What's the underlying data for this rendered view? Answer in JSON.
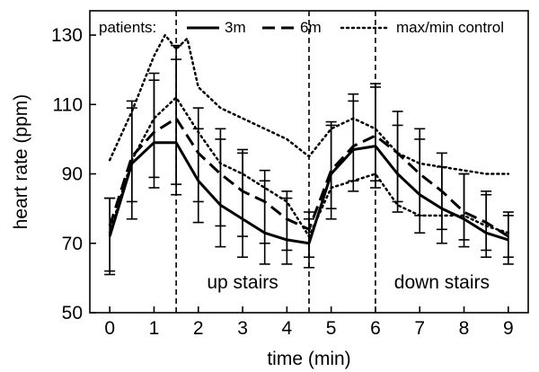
{
  "chart_data": {
    "type": "line",
    "xlabel": "time (min)",
    "ylabel": "heart rate (ppm)",
    "xlim": [
      -0.45,
      9.45
    ],
    "ylim": [
      50,
      137
    ],
    "x_ticks": [
      0,
      1,
      2,
      3,
      4,
      5,
      6,
      7,
      8,
      9
    ],
    "y_ticks": [
      50,
      70,
      90,
      110,
      130
    ],
    "grid": false,
    "legend": {
      "position": "top",
      "prefix": "patients:",
      "entries": [
        {
          "label": "3m",
          "style": "solid"
        },
        {
          "label": "6m",
          "style": "dashed"
        },
        {
          "label": "max/min control",
          "style": "dotted"
        }
      ]
    },
    "phase_markers": [
      1.5,
      4.5,
      6.0
    ],
    "annotations": [
      {
        "text": "up stairs",
        "x": 3.0,
        "y": 57
      },
      {
        "text": "down stairs",
        "x": 7.5,
        "y": 57
      }
    ],
    "series": [
      {
        "name": "3m",
        "style": "solid",
        "x": [
          0,
          0.5,
          1,
          1.5,
          2,
          2.5,
          3,
          3.5,
          4,
          4.5,
          5,
          5.5,
          6,
          6.5,
          7,
          7.5,
          8,
          8.5,
          9
        ],
        "y": [
          72,
          93,
          99,
          99,
          88,
          81,
          77,
          73,
          71,
          70,
          90,
          97,
          98,
          90,
          84,
          80,
          77,
          73,
          71
        ],
        "err_low": [
          61,
          77,
          86,
          84,
          76,
          69,
          66,
          64,
          64,
          63,
          77,
          85,
          86,
          79,
          73,
          70,
          69,
          66,
          64
        ],
        "err_high": [
          83,
          109,
          119,
          127,
          103,
          103,
          96,
          88,
          83,
          77,
          105,
          113,
          116,
          104,
          100,
          92,
          90,
          85,
          79
        ]
      },
      {
        "name": "6m",
        "style": "dashed",
        "x": [
          0,
          0.5,
          1,
          1.5,
          2,
          2.5,
          3,
          3.5,
          4,
          4.5,
          5,
          5.5,
          6,
          6.5,
          7,
          7.5,
          8,
          8.5,
          9
        ],
        "y": [
          75,
          95,
          102,
          106,
          96,
          90,
          85,
          82,
          77,
          74,
          91,
          98,
          101,
          96,
          90,
          85,
          79,
          76,
          72
        ],
        "err_low": [
          62,
          82,
          89,
          87,
          82,
          75,
          72,
          70,
          68,
          66,
          80,
          88,
          88,
          82,
          78,
          74,
          71,
          68,
          66
        ],
        "err_high": [
          83,
          111,
          117,
          123,
          109,
          100,
          97,
          91,
          85,
          79,
          104,
          111,
          115,
          108,
          103,
          96,
          90,
          84,
          78
        ]
      },
      {
        "name": "max control",
        "style": "dotted",
        "x": [
          0,
          0.5,
          1,
          1.25,
          1.5,
          1.75,
          2,
          2.5,
          3,
          3.5,
          4,
          4.5,
          5,
          5.5,
          6,
          6.5,
          7,
          7.5,
          8,
          8.5,
          9
        ],
        "y": [
          94,
          108,
          124,
          130,
          126,
          129,
          115,
          109,
          106,
          103,
          100,
          95,
          103,
          106,
          103,
          96,
          93,
          92,
          91,
          90,
          90
        ]
      },
      {
        "name": "min control",
        "style": "dotted",
        "x": [
          0,
          0.5,
          1,
          1.5,
          2,
          2.5,
          3,
          3.5,
          4,
          4.5,
          5,
          5.5,
          6,
          6.5,
          7,
          7.5,
          8,
          8.5,
          9
        ],
        "y": [
          73,
          94,
          106,
          112,
          102,
          93,
          90,
          86,
          82,
          72,
          86,
          88,
          90,
          81,
          78,
          78,
          78,
          75,
          73
        ]
      }
    ]
  }
}
